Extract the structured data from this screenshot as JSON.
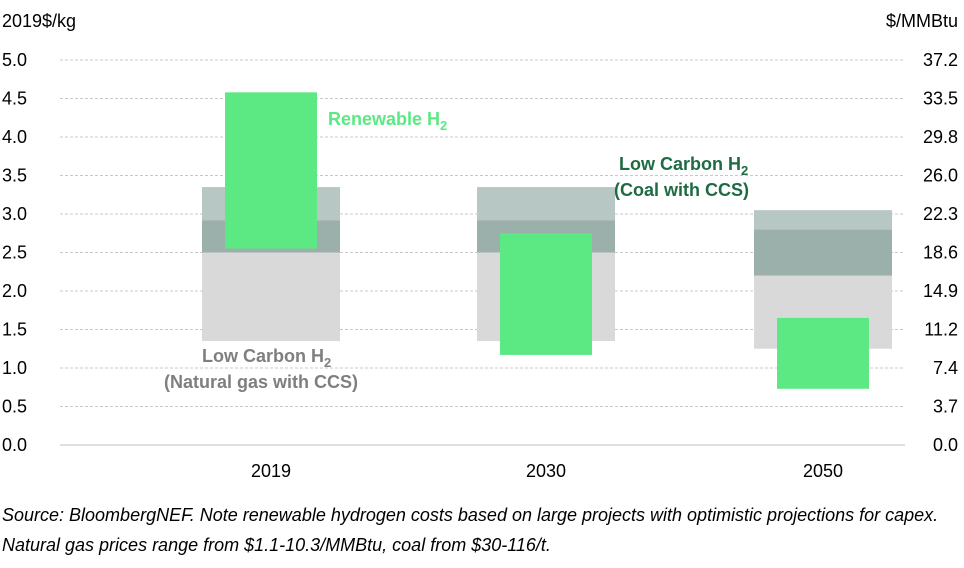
{
  "chart_data": {
    "type": "floating-bar",
    "y_axis_left_title": "2019$/kg",
    "y_axis_right_title": "$/MMBtu",
    "ylim": [
      0,
      5.0
    ],
    "y_ticks_left": [
      "0.0",
      "0.5",
      "1.0",
      "1.5",
      "2.0",
      "2.5",
      "3.0",
      "3.5",
      "4.0",
      "4.5",
      "5.0"
    ],
    "y_ticks_right": [
      "0.0",
      "3.7",
      "7.4",
      "11.2",
      "14.9",
      "18.6",
      "22.3",
      "26.0",
      "29.8",
      "33.5",
      "37.2"
    ],
    "gridlines": true,
    "categories": [
      "2019",
      "2030",
      "2050"
    ],
    "series": [
      {
        "name": "Low Carbon H2 (Natural gas with CCS)",
        "color": "#d9d9d9",
        "ranges": [
          [
            1.35,
            2.5
          ],
          [
            1.35,
            2.5
          ],
          [
            1.25,
            2.2
          ]
        ]
      },
      {
        "name": "Low Carbon H2 (Coal with CCS) - low band",
        "color": "#9bb0ab",
        "ranges": [
          [
            2.5,
            2.92
          ],
          [
            2.5,
            2.92
          ],
          [
            2.2,
            2.8
          ]
        ]
      },
      {
        "name": "Low Carbon H2 (Coal with CCS) - high band",
        "color": "#b7c7c3",
        "ranges": [
          [
            2.92,
            3.35
          ],
          [
            2.92,
            3.35
          ],
          [
            2.8,
            3.05
          ]
        ]
      },
      {
        "name": "Renewable H2",
        "color": "#5ce883",
        "ranges": [
          [
            2.55,
            4.58
          ],
          [
            1.17,
            2.75
          ],
          [
            0.73,
            1.65
          ]
        ]
      }
    ],
    "annotations": {
      "renewable": {
        "text": "Renewable H",
        "sub": "2",
        "color": "#5ce883"
      },
      "coal_line1": {
        "text": "Low Carbon H",
        "sub": "2",
        "color": "#1e6b43"
      },
      "coal_line2": {
        "text": "(Coal with CCS)",
        "color": "#1e6b43"
      },
      "gas_line1": {
        "text": "Low Carbon H",
        "sub": "2",
        "color": "#7f7f7f"
      },
      "gas_line2": {
        "text": "(Natural gas with CCS)",
        "color": "#7f7f7f"
      }
    }
  },
  "footnote": "Source: BloombergNEF. Note renewable hydrogen costs based on large projects with optimistic projections for capex. Natural gas prices range from $1.1-10.3/MMBtu, coal from $30-116/t."
}
